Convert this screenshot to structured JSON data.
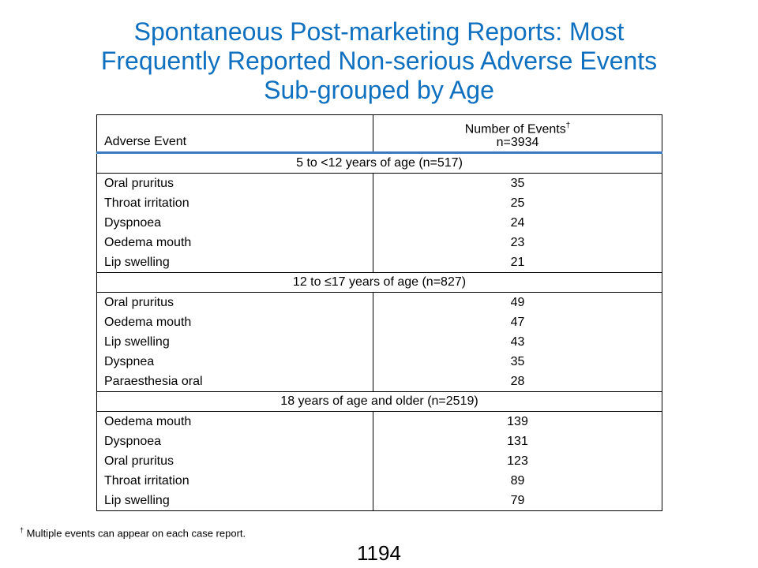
{
  "title": {
    "line1": "Spontaneous Post-marketing Reports: Most",
    "line2": "Frequently Reported Non-serious Adverse Events",
    "line3": "Sub-grouped by Age"
  },
  "table": {
    "col1_header": "Adverse Event",
    "col2_header_line1": "Number of Events",
    "col2_header_mark": "†",
    "col2_header_line2": "n=3934",
    "groups": [
      {
        "label": "5 to <12 years of age (n=517)",
        "rows": [
          {
            "event": "Oral pruritus",
            "count": "35"
          },
          {
            "event": "Throat irritation",
            "count": "25"
          },
          {
            "event": "Dyspnoea",
            "count": "24"
          },
          {
            "event": "Oedema mouth",
            "count": "23"
          },
          {
            "event": "Lip swelling",
            "count": "21"
          }
        ]
      },
      {
        "label": "12 to ≤17 years of age (n=827)",
        "rows": [
          {
            "event": "Oral pruritus",
            "count": "49"
          },
          {
            "event": "Oedema mouth",
            "count": "47"
          },
          {
            "event": "Lip swelling",
            "count": "43"
          },
          {
            "event": "Dyspnea",
            "count": "35"
          },
          {
            "event": "Paraesthesia oral",
            "count": "28"
          }
        ]
      },
      {
        "label": "18 years of age and older (n=2519)",
        "rows": [
          {
            "event": "Oedema mouth",
            "count": "139"
          },
          {
            "event": "Dyspnoea",
            "count": "131"
          },
          {
            "event": "Oral pruritus",
            "count": "123"
          },
          {
            "event": "Throat irritation",
            "count": "89"
          },
          {
            "event": "Lip swelling",
            "count": "79"
          }
        ]
      }
    ]
  },
  "footnote": {
    "mark": "†",
    "text": " Multiple events can appear on each case report."
  },
  "page_number": "1194",
  "colors": {
    "title": "#0f70c0",
    "header_rule": "#3a78c2"
  }
}
